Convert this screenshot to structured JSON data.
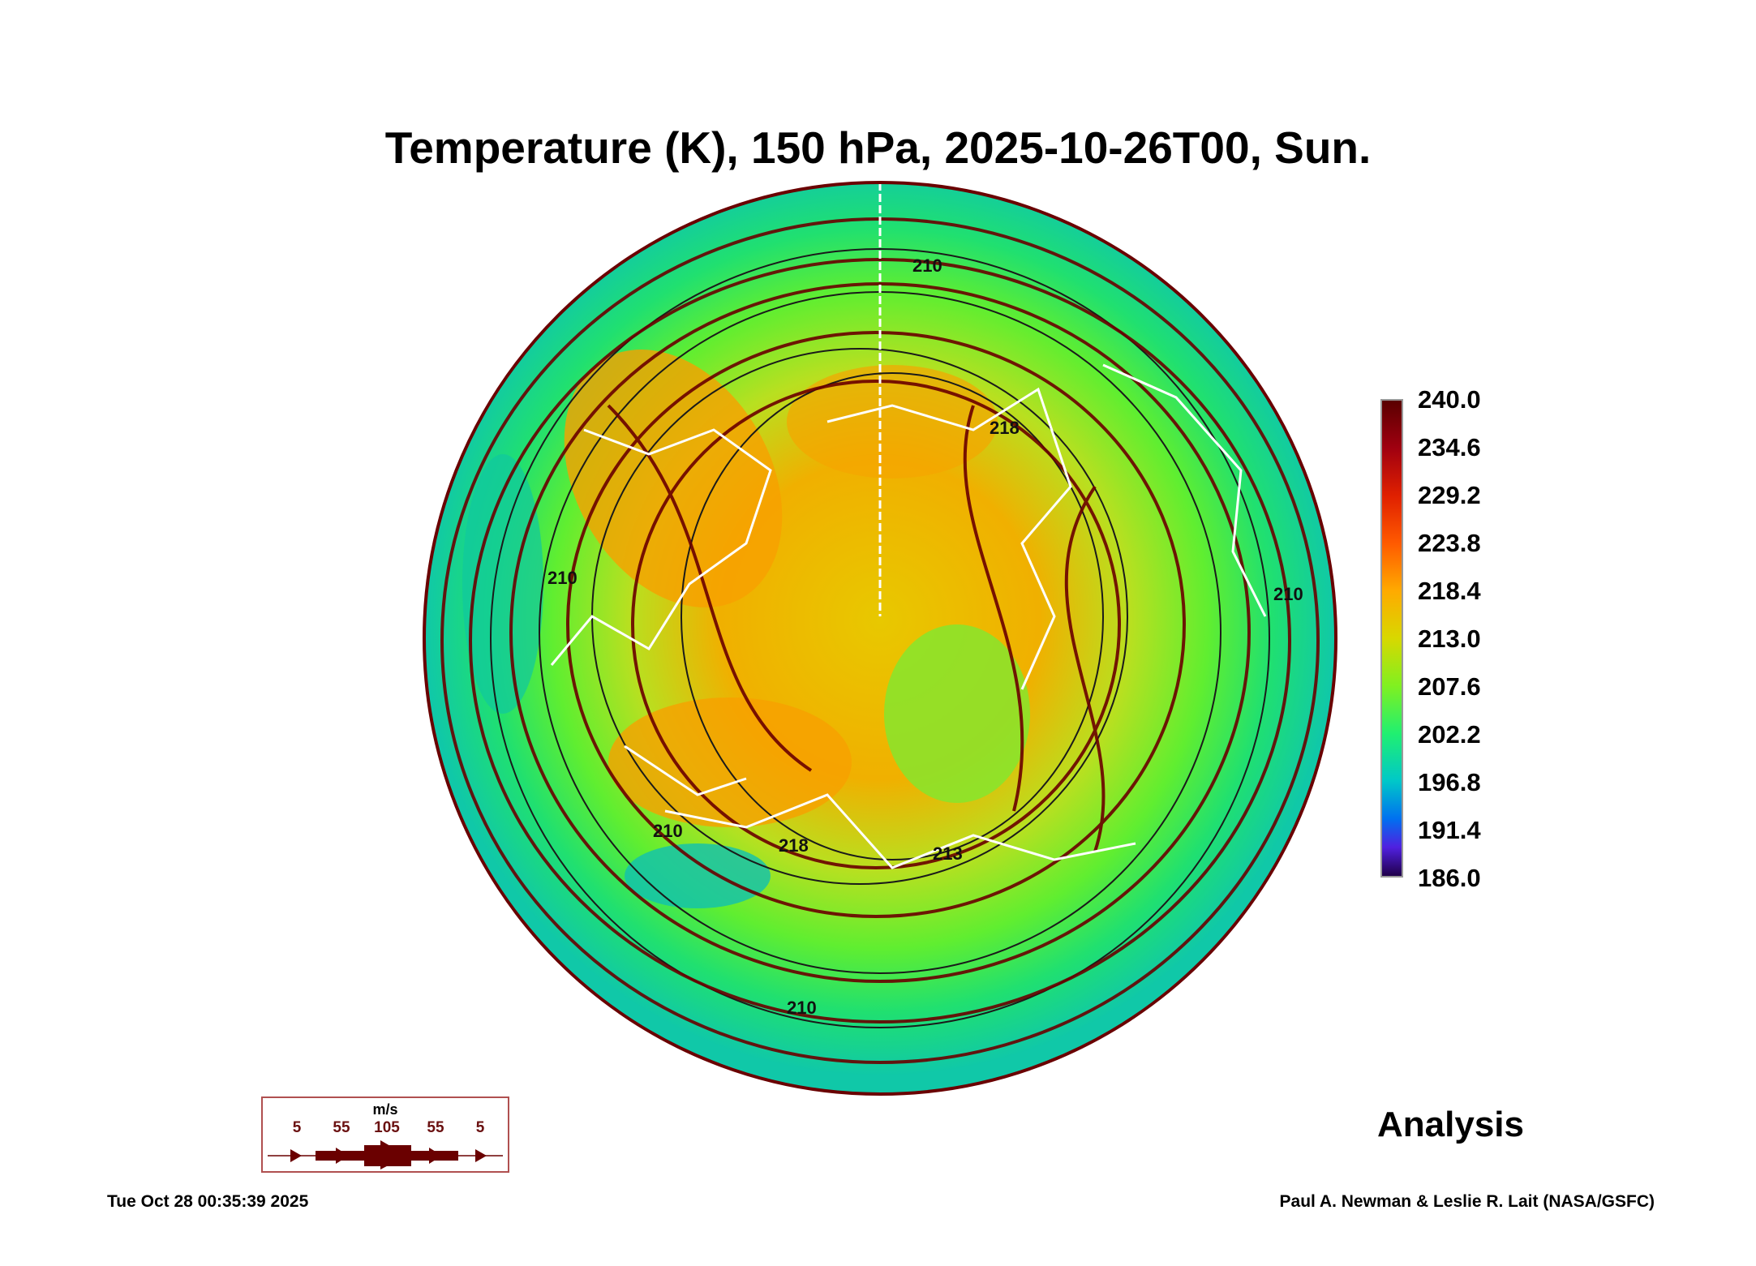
{
  "title": "Temperature (K), 150 hPa, 2025-10-26T00, Sun.",
  "colorbar": {
    "labels": [
      "240.0",
      "234.6",
      "229.2",
      "223.8",
      "218.4",
      "213.0",
      "207.6",
      "202.2",
      "196.8",
      "191.4",
      "186.0"
    ],
    "units": "K"
  },
  "contour_labels": [
    "210",
    "218",
    "210",
    "210",
    "218",
    "213",
    "210",
    "210"
  ],
  "wind_legend": {
    "unit": "m/s",
    "speeds": [
      "5",
      "55",
      "105",
      "55",
      "5"
    ],
    "color": "#6a0000"
  },
  "mode": "Analysis",
  "timestamp": "Tue Oct 28 00:35:39 2025",
  "credit": "Paul A. Newman & Leslie R. Lait (NASA/GSFC)"
}
